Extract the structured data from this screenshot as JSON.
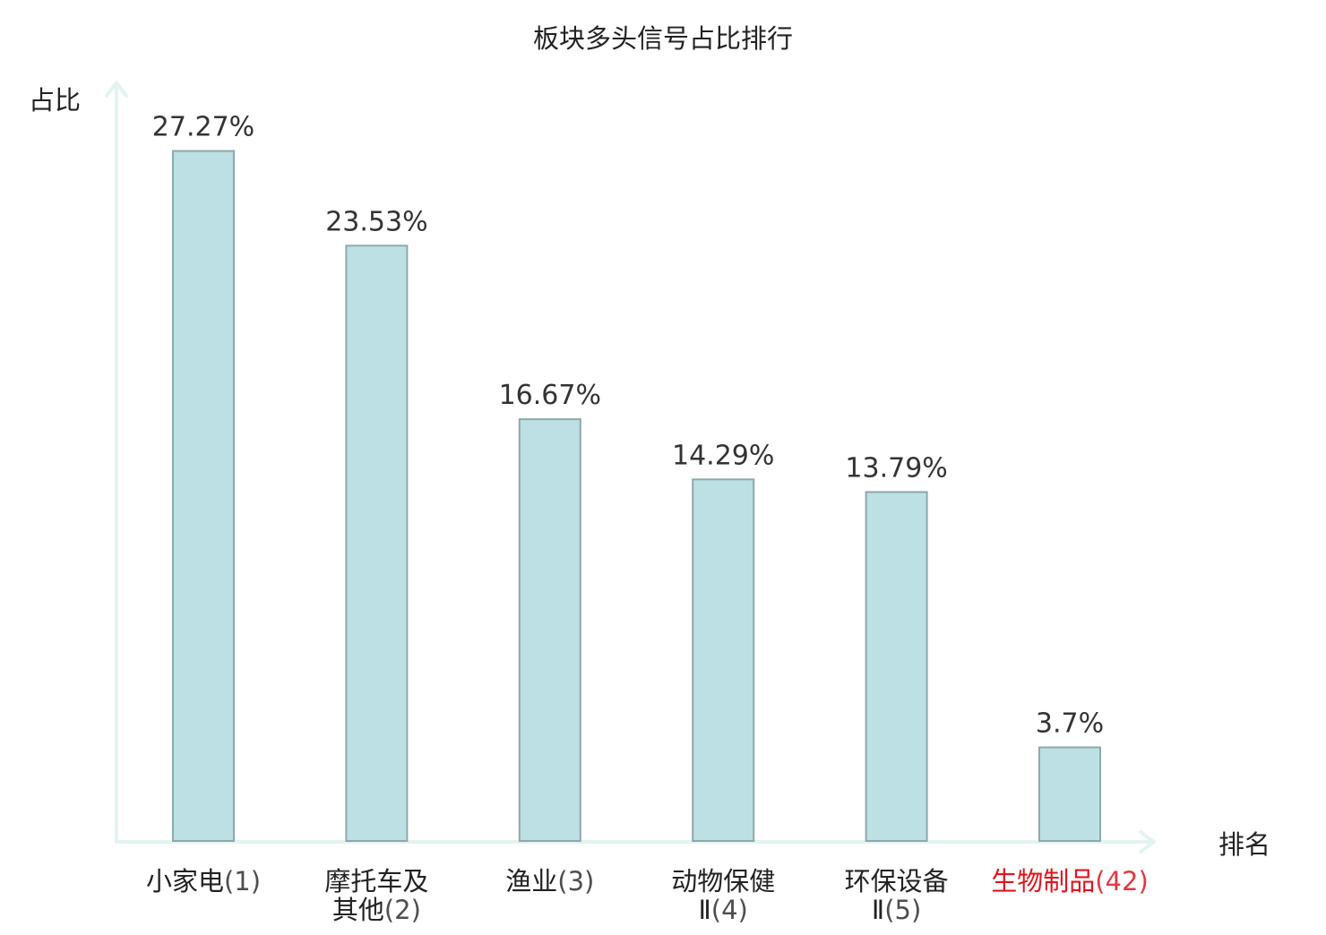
{
  "colors": {
    "bar_fill": "#bce0e3",
    "bar_stroke": "#8fa8aa",
    "axis": "#e3f3f1",
    "text": "#222222",
    "value_label": "#333333",
    "highlight": "#e0141e"
  },
  "chart_data": {
    "type": "bar",
    "title": "板块多头信号占比排行",
    "ylabel": "占比",
    "xlabel": "排名",
    "ylim": [
      0,
      30
    ],
    "categories": [
      {
        "name_lines": [
          "小家电"
        ],
        "rank": "(1)",
        "highlight": false
      },
      {
        "name_lines": [
          "摩托车及",
          "其他"
        ],
        "rank": "(2)",
        "highlight": false
      },
      {
        "name_lines": [
          "渔业"
        ],
        "rank": "(3)",
        "highlight": false
      },
      {
        "name_lines": [
          "动物保健",
          "Ⅱ"
        ],
        "rank": "(4)",
        "highlight": false
      },
      {
        "name_lines": [
          "环保设备",
          "Ⅱ"
        ],
        "rank": "(5)",
        "highlight": false
      },
      {
        "name_lines": [
          "生物制品"
        ],
        "rank": "(42)",
        "highlight": true
      }
    ],
    "values": [
      27.27,
      23.53,
      16.67,
      14.29,
      13.79,
      3.7
    ],
    "value_labels": [
      "27.27%",
      "23.53%",
      "16.67%",
      "14.29%",
      "13.79%",
      "3.7%"
    ]
  }
}
